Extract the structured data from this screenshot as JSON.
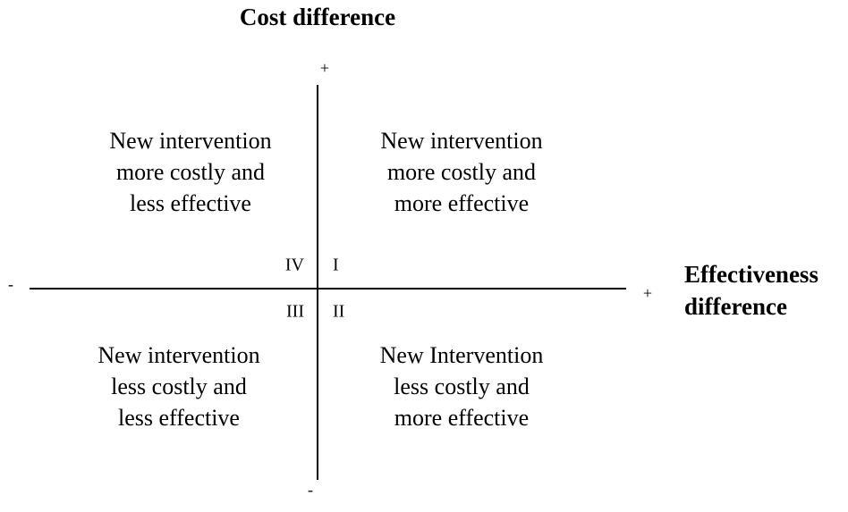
{
  "title": "Cost difference",
  "y_axis": {
    "top": "+",
    "bottom": "-"
  },
  "x_axis": {
    "left": "-",
    "right": "+",
    "label": [
      "Effectiveness",
      "difference"
    ]
  },
  "quadrants": [
    {
      "numeral": "I",
      "lines": [
        "New intervention",
        "more costly and",
        "more effective"
      ]
    },
    {
      "numeral": "II",
      "lines": [
        "New Intervention",
        "less costly and",
        "more effective"
      ]
    },
    {
      "numeral": "III",
      "lines": [
        "New intervention",
        "less costly and",
        "less effective"
      ]
    },
    {
      "numeral": "IV",
      "lines": [
        "New intervention",
        "more costly and",
        "less effective"
      ]
    }
  ]
}
